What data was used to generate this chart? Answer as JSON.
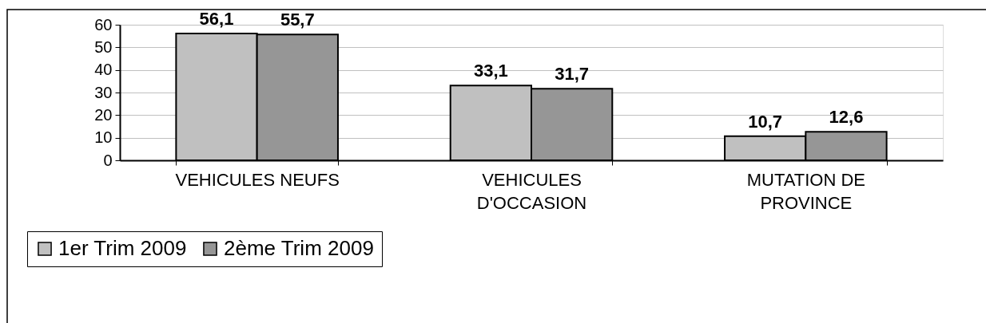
{
  "chart_data": {
    "type": "bar",
    "categories": [
      "VEHICULES NEUFS",
      "VEHICULES D'OCCASION",
      "MUTATION DE PROVINCE"
    ],
    "series": [
      {
        "name": "1er Trim 2009",
        "color": "#c0c0c0",
        "values": [
          56.1,
          33.1,
          10.7
        ],
        "value_labels": [
          "56,1",
          "33,1",
          "10,7"
        ]
      },
      {
        "name": "2ème Trim 2009",
        "color": "#969696",
        "values": [
          55.7,
          31.7,
          12.6
        ],
        "value_labels": [
          "55,7",
          "31,7",
          "12,6"
        ]
      }
    ],
    "ylim": [
      0,
      60
    ],
    "yticks": [
      0,
      10,
      20,
      30,
      40,
      50,
      60
    ],
    "grid": "y",
    "legend": "bottom left"
  }
}
